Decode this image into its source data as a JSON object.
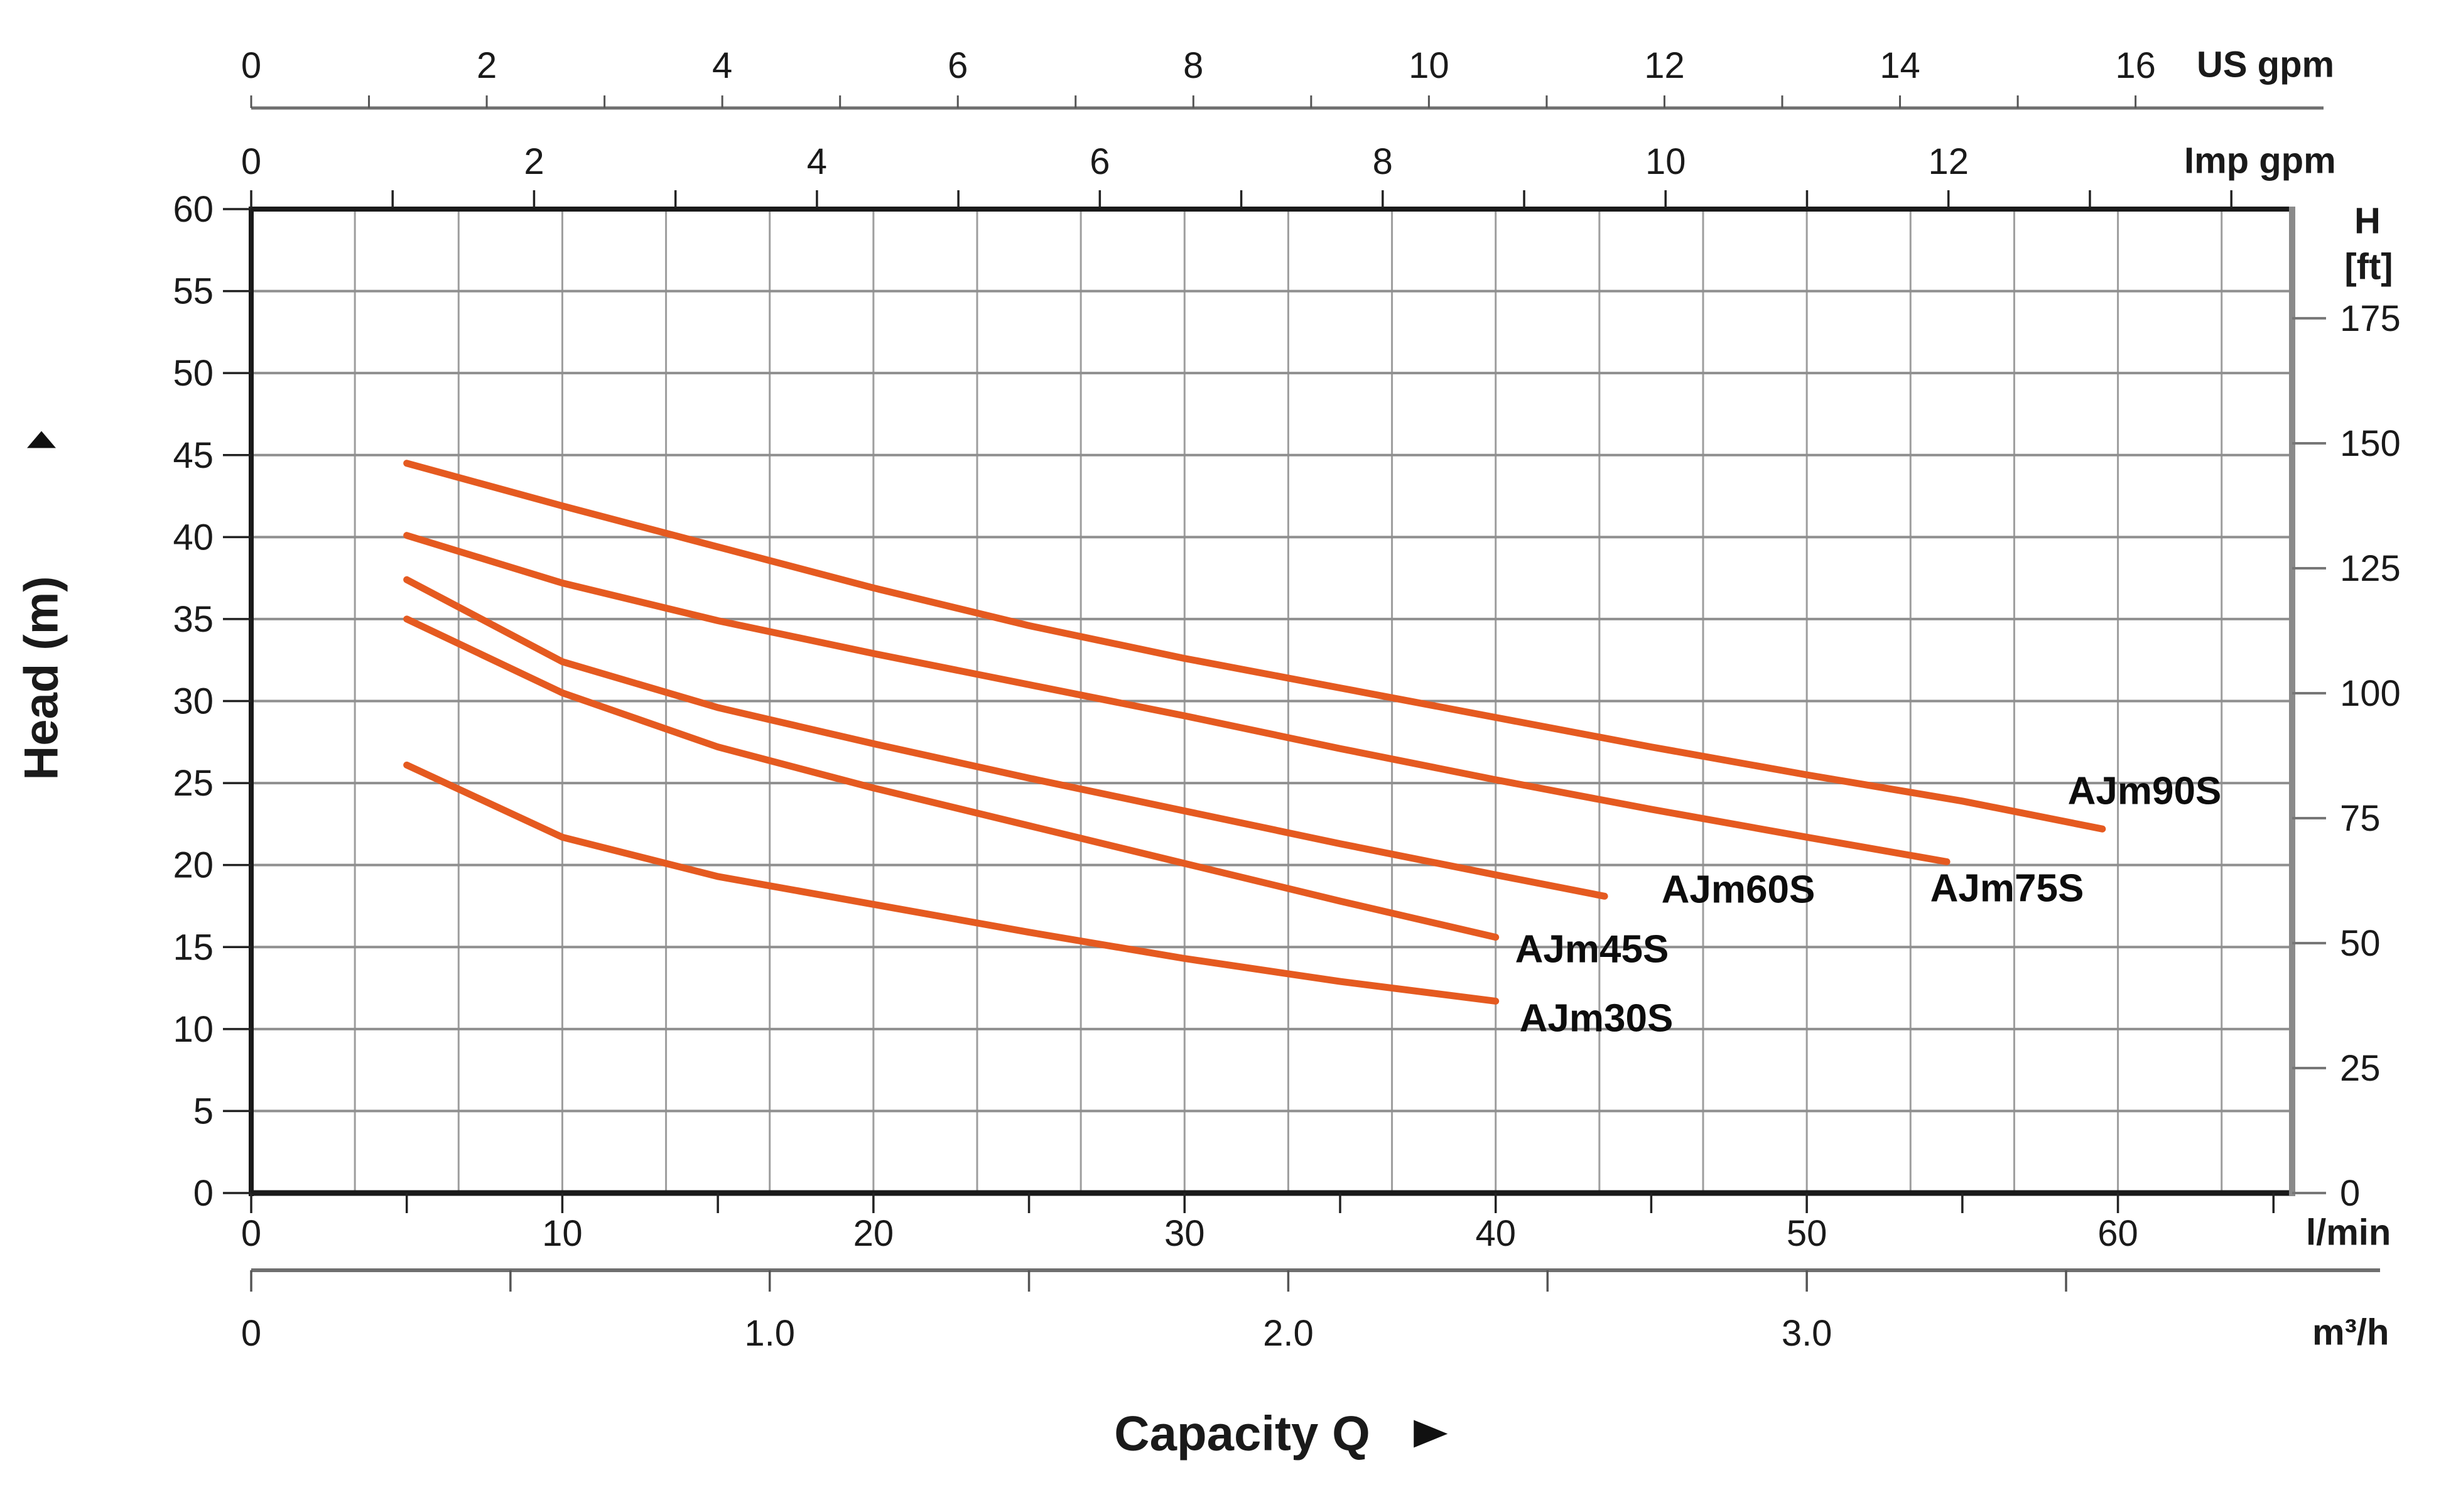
{
  "chart_data": {
    "type": "line",
    "title": "",
    "xlabel": "Capacity Q",
    "ylabel": "Head (m)",
    "xlim_lmin": [
      0,
      65.6
    ],
    "ylim_m": [
      0,
      60
    ],
    "curve_color": "#e55a20",
    "grid": {
      "x_step_m3h": 0.2,
      "y_step_m": 5,
      "on": true
    },
    "lmin_per_usgpm": 3.7854,
    "lmin_per_impgpm": 4.5461,
    "lmin_per_m3h": 16.6667,
    "axes": {
      "us_gpm": {
        "unit": "US gpm",
        "tick_step": 1,
        "label_step": 2,
        "max_tick": 16
      },
      "imp_gpm": {
        "unit": "Imp gpm",
        "tick_step": 1,
        "label_step": 2,
        "max_tick": 14,
        "max_label": 12
      },
      "lmin": {
        "unit": "l/min",
        "tick_step": 5,
        "label_step": 10,
        "max_tick": 65,
        "max_label": 60
      },
      "m3h": {
        "unit": "m³/h",
        "tick_step": 0.5,
        "max_tick": 3.5,
        "labels": [
          "0",
          "1.0",
          "2.0",
          "3.0"
        ]
      },
      "head_m": {
        "unit": "Head (m)",
        "tick_step": 5,
        "max": 60
      },
      "h_ft": {
        "unit_line1": "H",
        "unit_line2": "[ft]",
        "tick_step": 25,
        "max": 175
      }
    },
    "series": [
      {
        "name": "AJm90S",
        "points": [
          [
            5,
            44.5
          ],
          [
            10,
            41.9
          ],
          [
            15,
            39.4
          ],
          [
            20,
            36.9
          ],
          [
            25,
            34.6
          ],
          [
            30,
            32.6
          ],
          [
            35,
            30.8
          ],
          [
            40,
            29.0
          ],
          [
            45,
            27.2
          ],
          [
            50,
            25.5
          ],
          [
            55,
            23.9
          ],
          [
            59.5,
            22.2
          ]
        ]
      },
      {
        "name": "AJm75S",
        "points": [
          [
            5,
            40.1
          ],
          [
            10,
            37.2
          ],
          [
            15,
            34.9
          ],
          [
            20,
            32.9
          ],
          [
            25,
            31.0
          ],
          [
            30,
            29.1
          ],
          [
            35,
            27.1
          ],
          [
            40,
            25.2
          ],
          [
            45,
            23.4
          ],
          [
            50,
            21.7
          ],
          [
            54.5,
            20.2
          ]
        ]
      },
      {
        "name": "AJm60S",
        "points": [
          [
            5,
            37.4
          ],
          [
            10,
            32.4
          ],
          [
            15,
            29.6
          ],
          [
            20,
            27.4
          ],
          [
            25,
            25.3
          ],
          [
            30,
            23.3
          ],
          [
            35,
            21.3
          ],
          [
            40,
            19.4
          ],
          [
            43.5,
            18.1
          ]
        ]
      },
      {
        "name": "AJm45S",
        "points": [
          [
            5,
            35.0
          ],
          [
            10,
            30.5
          ],
          [
            15,
            27.2
          ],
          [
            20,
            24.7
          ],
          [
            25,
            22.4
          ],
          [
            30,
            20.1
          ],
          [
            35,
            17.8
          ],
          [
            40,
            15.6
          ]
        ]
      },
      {
        "name": "AJm30S",
        "points": [
          [
            5,
            26.1
          ],
          [
            10,
            21.7
          ],
          [
            15,
            19.3
          ],
          [
            20,
            17.6
          ],
          [
            25,
            15.9
          ],
          [
            30,
            14.3
          ],
          [
            35,
            12.9
          ],
          [
            40,
            11.7
          ]
        ]
      }
    ]
  }
}
